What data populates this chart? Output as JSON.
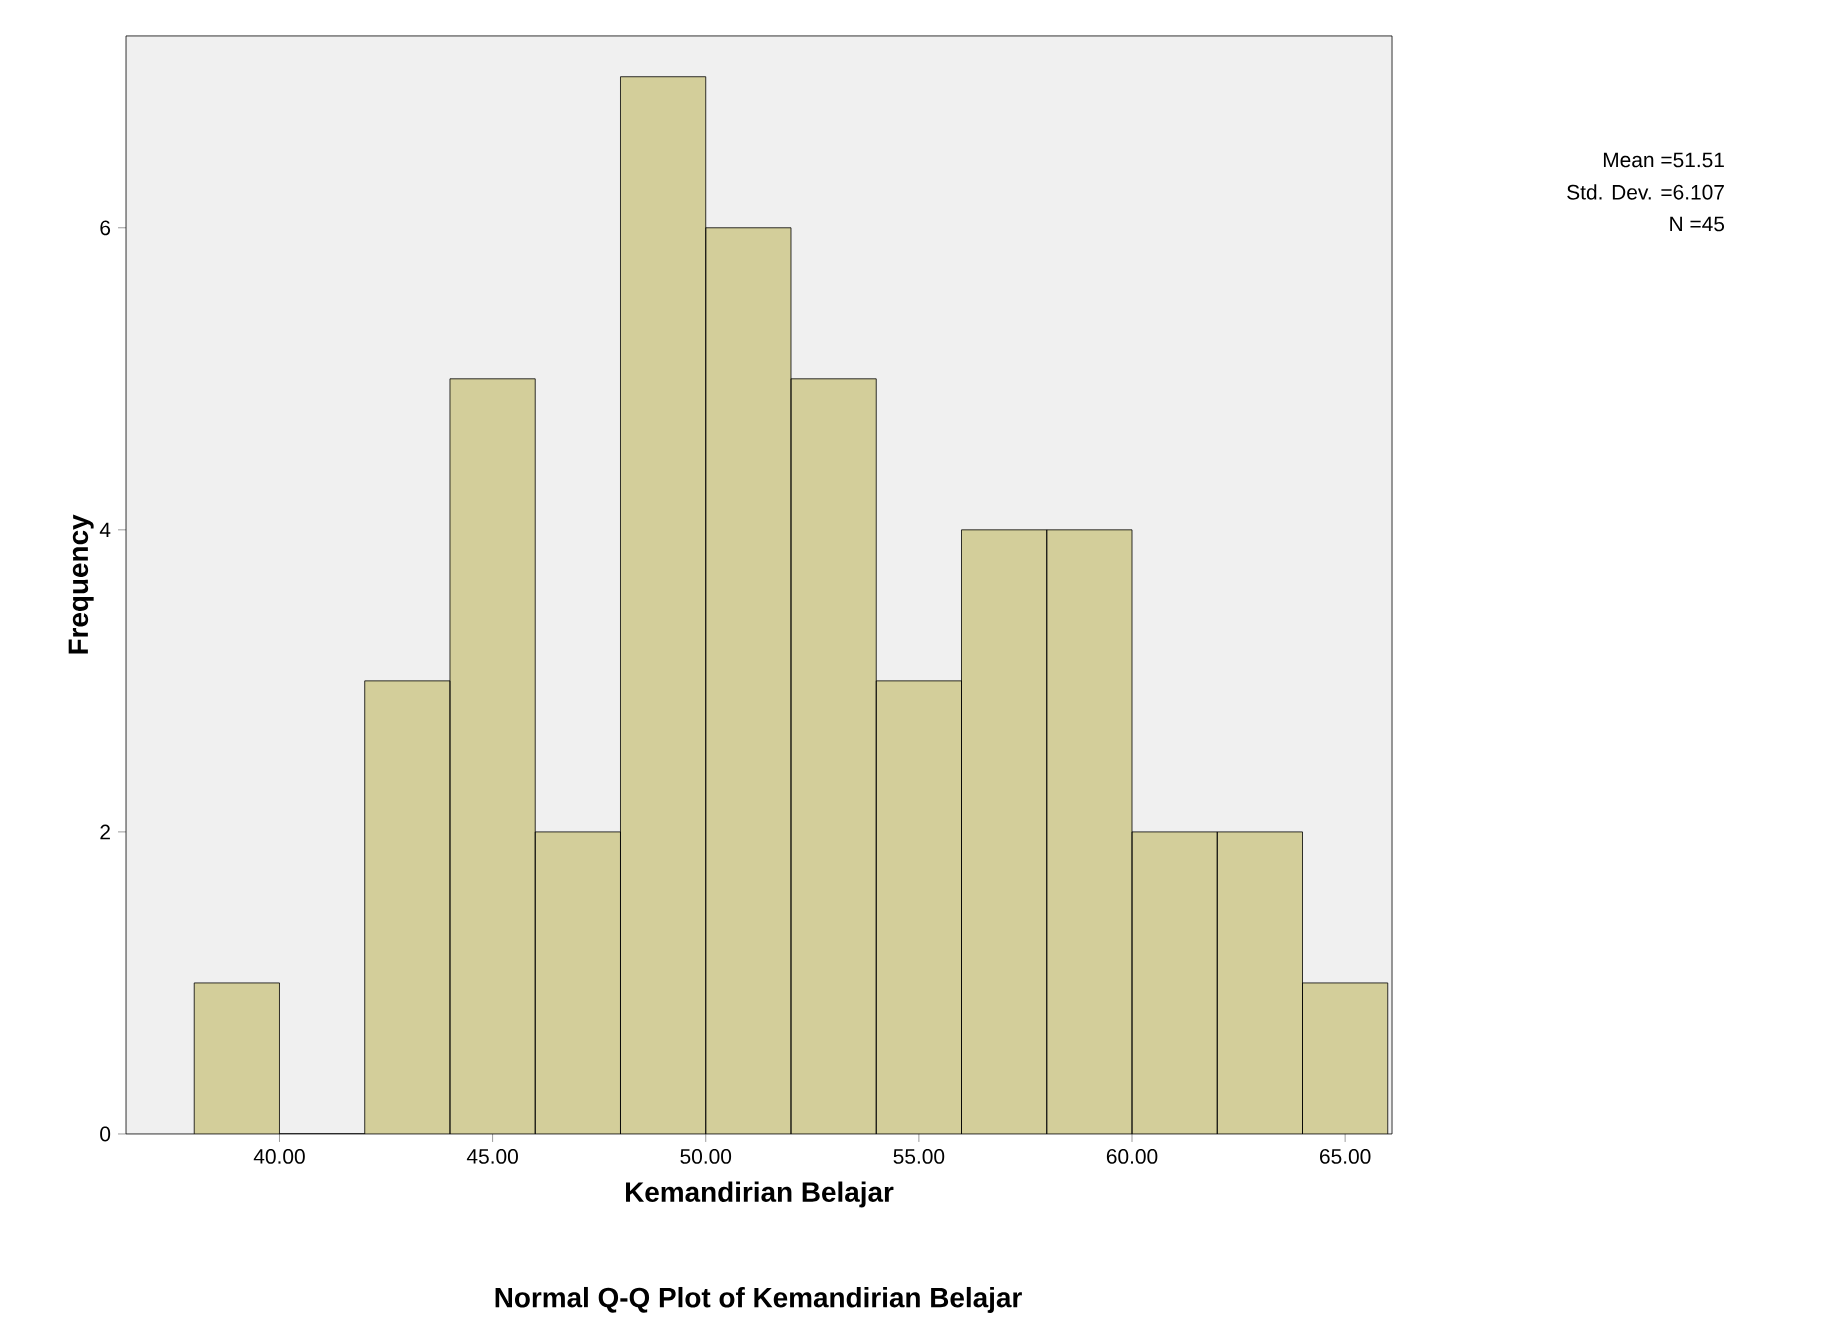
{
  "chart_data": {
    "type": "histogram",
    "xlabel": "Kemandirian Belajar",
    "ylabel": "Frequency",
    "bins": [
      38,
      40,
      42,
      44,
      46,
      48,
      50,
      52,
      54,
      56,
      58,
      60,
      62,
      64,
      66
    ],
    "values": [
      1,
      0,
      3,
      5,
      2,
      7,
      6,
      5,
      3,
      4,
      4,
      2,
      2,
      1
    ],
    "color": "#d3ce9a",
    "xlim": [
      36.4,
      66.1
    ],
    "ylim": [
      0,
      7.27
    ],
    "xticks": [
      {
        "value": 40,
        "label": "40.00"
      },
      {
        "value": 45,
        "label": "45.00"
      },
      {
        "value": 50,
        "label": "50.00"
      },
      {
        "value": 55,
        "label": "55.00"
      },
      {
        "value": 60,
        "label": "60.00"
      },
      {
        "value": 65,
        "label": "65.00"
      }
    ],
    "yticks": [
      0,
      2,
      4,
      6
    ],
    "grid": false,
    "annotations": [
      "Mean =51.51",
      "Std. Dev. =6.107",
      "N =45",
      "Normal Q-Q Plot of Kemandirian Belajar"
    ]
  }
}
